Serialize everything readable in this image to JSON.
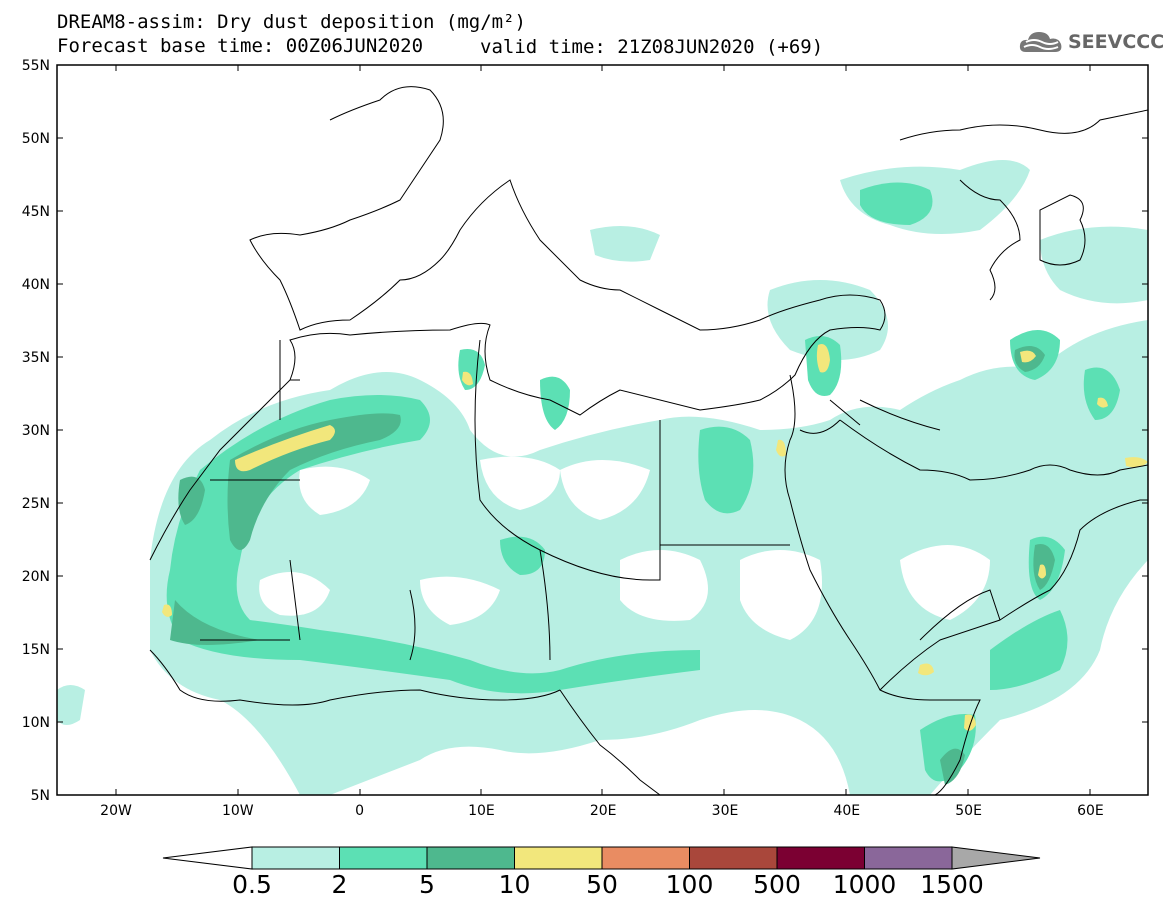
{
  "title": {
    "line1": "DREAM8-assim: Dry dust deposition (mg/m²)",
    "line2_base": "Forecast base time: 00Z06JUN2020",
    "line2_valid": "valid time: 21Z08JUN2020 (+69)"
  },
  "logo": {
    "text": "SEEVCCC",
    "icon": "cloud-logo-icon"
  },
  "axes": {
    "lat_labels": [
      "55N",
      "50N",
      "45N",
      "40N",
      "35N",
      "30N",
      "25N",
      "20N",
      "15N",
      "10N",
      "5N"
    ],
    "lon_labels": [
      "20W",
      "10W",
      "0",
      "10E",
      "20E",
      "30E",
      "40E",
      "50E",
      "60E"
    ]
  },
  "colorbar": {
    "labels": [
      "0.5",
      "2",
      "5",
      "10",
      "50",
      "100",
      "500",
      "1000",
      "1500"
    ],
    "colors": [
      "#b8efe3",
      "#5ce0b4",
      "#4eb88e",
      "#f2e77c",
      "#e98c62",
      "#a9473b",
      "#7b0032",
      "#8a679a",
      "#a8a8a8"
    ]
  }
}
